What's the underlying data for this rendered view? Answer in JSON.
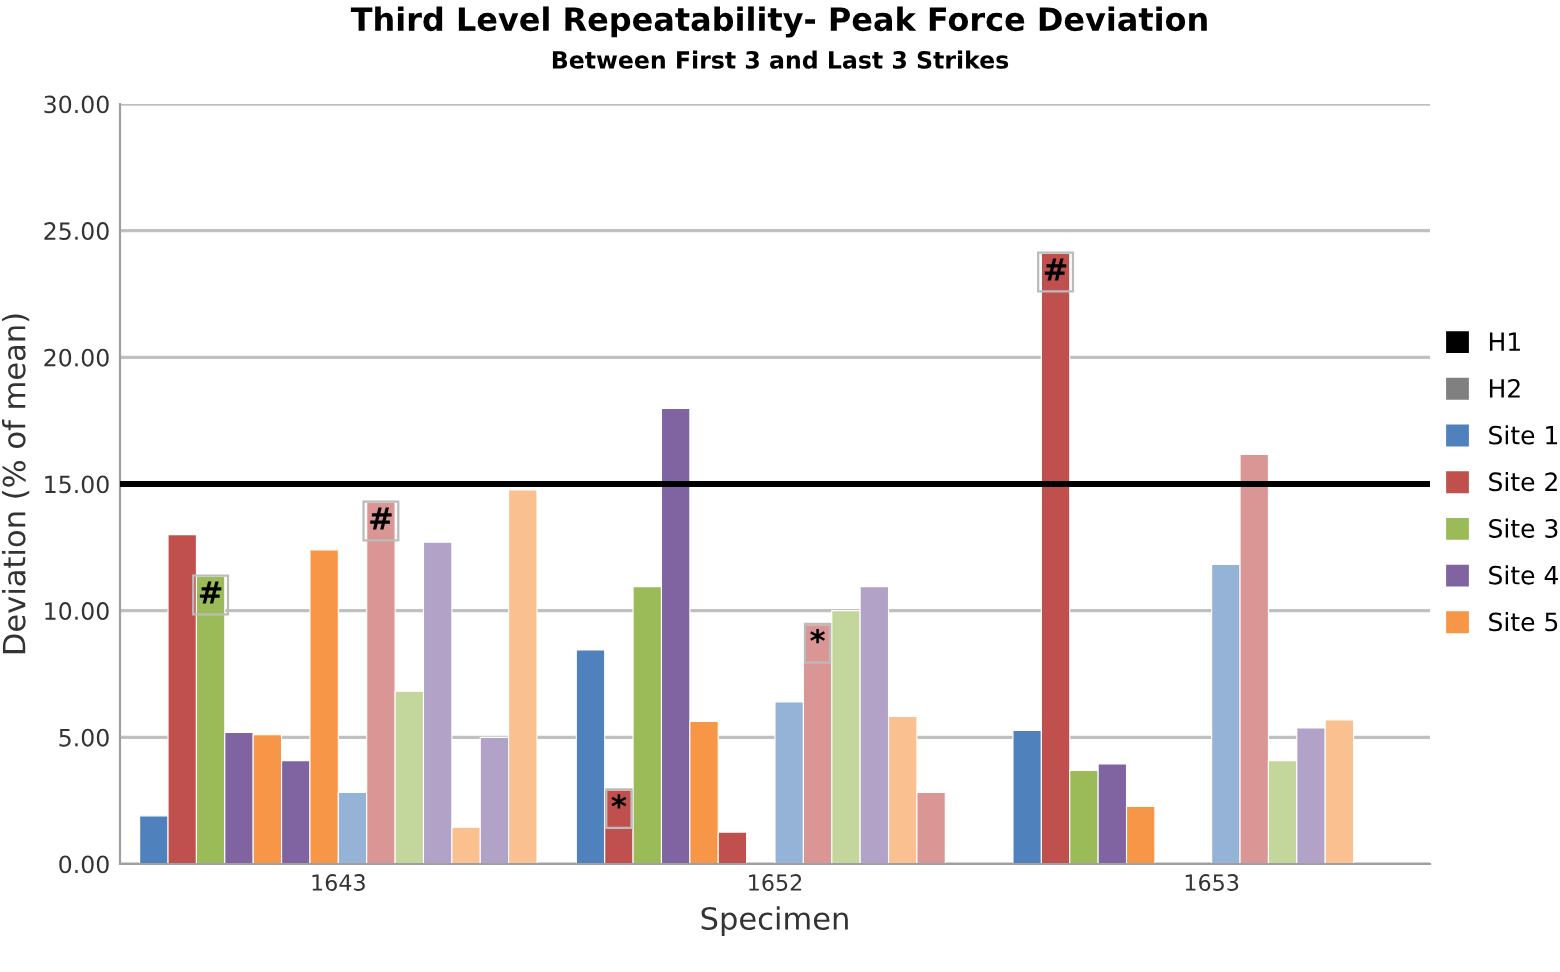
{
  "chart_data": {
    "type": "bar",
    "title": "Third Level Repeatability- Peak Force Deviation",
    "subtitle": "Between First 3 and Last 3 Strikes",
    "xlabel": "Specimen",
    "ylabel": "Deviation (% of mean)",
    "categories": [
      "1643",
      "1652",
      "1653"
    ],
    "series": [
      {
        "name": "H1",
        "color": "#000000",
        "values": [
          null,
          null,
          null
        ]
      },
      {
        "name": "H2",
        "color": "#808080",
        "values": [
          null,
          null,
          null
        ]
      },
      {
        "name": "Site 1",
        "color": "#4f81bd",
        "values": [
          1.9,
          8.45,
          5.27
        ]
      },
      {
        "name": "Site 2",
        "color": "#c0504d",
        "values": [
          13.0,
          2.92,
          24.1
        ],
        "value_labels": [
          null,
          "*",
          "#"
        ]
      },
      {
        "name": "Site 3",
        "color": "#9bbb59",
        "values": [
          11.35,
          10.95,
          3.69
        ],
        "value_labels": [
          "#",
          null,
          null
        ]
      },
      {
        "name": "Site 4",
        "color": "#8064a2",
        "values": [
          5.19,
          17.98,
          3.95
        ]
      },
      {
        "name": "Site 5",
        "color": "#f79646",
        "values": [
          5.1,
          5.63,
          2.27
        ]
      },
      {
        "colors": [
          "#8064a2",
          "#c0504d",
          null
        ],
        "values": [
          4.08,
          1.26,
          null
        ]
      },
      {
        "colors": [
          "#f79646",
          null,
          null
        ],
        "values": [
          12.4,
          null,
          null
        ]
      },
      {
        "color": "#95b3d7",
        "values": [
          2.82,
          6.4,
          11.82
        ]
      },
      {
        "color": "#d99694",
        "values": [
          14.27,
          9.45,
          16.17
        ],
        "value_labels": [
          "#",
          "*",
          null
        ]
      },
      {
        "color": "#c3d69b",
        "values": [
          6.82,
          10.0,
          4.08
        ]
      },
      {
        "color": "#b2a2c7",
        "values": [
          12.7,
          10.95,
          5.37
        ]
      },
      {
        "color": "#fac090",
        "values": [
          1.45,
          5.82,
          5.69
        ]
      },
      {
        "colors": [
          "#b2a2c7",
          "#d99694",
          null
        ],
        "values": [
          5.0,
          2.82,
          null
        ]
      },
      {
        "colors": [
          "#fac090",
          null,
          null
        ],
        "values": [
          14.77,
          null,
          null
        ]
      }
    ],
    "ylim": [
      0,
      30
    ],
    "yticks": [
      {
        "value": 0,
        "label": "0.00"
      },
      {
        "value": 5,
        "label": "5.00"
      },
      {
        "value": 10,
        "label": "10.00"
      },
      {
        "value": 15,
        "label": "15.00"
      },
      {
        "value": 20,
        "label": "20.00"
      },
      {
        "value": 25,
        "label": "25.00"
      },
      {
        "value": 30,
        "label": "30.00"
      }
    ],
    "grid": "y",
    "legend": "right",
    "ref_lines": [
      {
        "axis": "y",
        "value": 15,
        "color": "#000000"
      }
    ]
  }
}
